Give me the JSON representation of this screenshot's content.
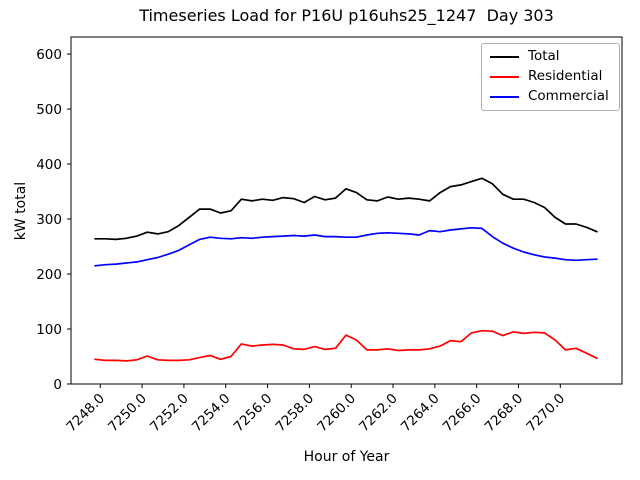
{
  "figure": {
    "background": "#ffffff",
    "axes_color": "#000000",
    "legend_border_color": "#b0b0b0"
  },
  "chart_data": {
    "type": "line",
    "title": "Timeseries Load for P16U p16uhs25_1247  Day 303",
    "xlabel": "Hour of Year",
    "ylabel": "kW total",
    "xlim": [
      7246.6,
      7272.95
    ],
    "ylim": [
      0,
      631
    ],
    "grid": false,
    "legend_position": "upper right",
    "x_ticks": [
      7248,
      7250,
      7252,
      7254,
      7256,
      7258,
      7260,
      7262,
      7264,
      7266,
      7268,
      7270
    ],
    "x_tick_labels": [
      "7248.0",
      "7250.0",
      "7252.0",
      "7254.0",
      "7256.0",
      "7258.0",
      "7260.0",
      "7262.0",
      "7264.0",
      "7266.0",
      "7268.0",
      "7270.0"
    ],
    "y_ticks": [
      0,
      100,
      200,
      300,
      400,
      500,
      600
    ],
    "y_tick_labels": [
      "0",
      "100",
      "200",
      "300",
      "400",
      "500",
      "600"
    ],
    "x": [
      7247.75,
      7248.25,
      7248.75,
      7249.25,
      7249.75,
      7250.25,
      7250.75,
      7251.25,
      7251.75,
      7252.25,
      7252.75,
      7253.25,
      7253.75,
      7254.25,
      7254.75,
      7255.25,
      7255.75,
      7256.25,
      7256.75,
      7257.25,
      7257.75,
      7258.25,
      7258.75,
      7259.25,
      7259.75,
      7260.25,
      7260.75,
      7261.25,
      7261.75,
      7262.25,
      7262.75,
      7263.25,
      7263.75,
      7264.25,
      7264.75,
      7265.25,
      7265.75,
      7266.25,
      7266.75,
      7267.25,
      7267.75,
      7268.25,
      7268.75,
      7269.25,
      7269.75,
      7270.25,
      7270.75,
      7271.25,
      7271.75
    ],
    "series": [
      {
        "name": "Total",
        "color": "#000000",
        "values": [
          264,
          264,
          263,
          265,
          269,
          276,
          273,
          277,
          288,
          303,
          318,
          318,
          311,
          315,
          336,
          333,
          336,
          334,
          339,
          337,
          330,
          341,
          335,
          338,
          355,
          348,
          335,
          333,
          340,
          336,
          338,
          336,
          333,
          348,
          359,
          362,
          368,
          374,
          364,
          345,
          336,
          336,
          330,
          321,
          303,
          291,
          291,
          285,
          277
        ]
      },
      {
        "name": "Residential",
        "color": "#ff0000",
        "values": [
          45,
          43,
          43,
          42,
          44,
          51,
          44,
          43,
          43,
          44,
          48,
          52,
          45,
          50,
          73,
          69,
          71,
          72,
          71,
          64,
          63,
          68,
          63,
          65,
          89,
          80,
          62,
          62,
          64,
          61,
          62,
          62,
          64,
          69,
          79,
          77,
          93,
          97,
          96,
          88,
          95,
          92,
          94,
          93,
          80,
          62,
          65,
          56,
          47
        ]
      },
      {
        "name": "Commercial",
        "color": "#0000ff",
        "values": [
          215,
          217,
          218,
          220,
          222,
          226,
          230,
          236,
          243,
          253,
          263,
          267,
          265,
          264,
          266,
          265,
          267,
          268,
          269,
          270,
          269,
          271,
          268,
          268,
          267,
          267,
          271,
          274,
          275,
          274,
          273,
          271,
          279,
          277,
          280,
          282,
          284,
          283,
          268,
          256,
          247,
          240,
          235,
          231,
          229,
          226,
          225,
          226,
          227
        ]
      }
    ]
  }
}
